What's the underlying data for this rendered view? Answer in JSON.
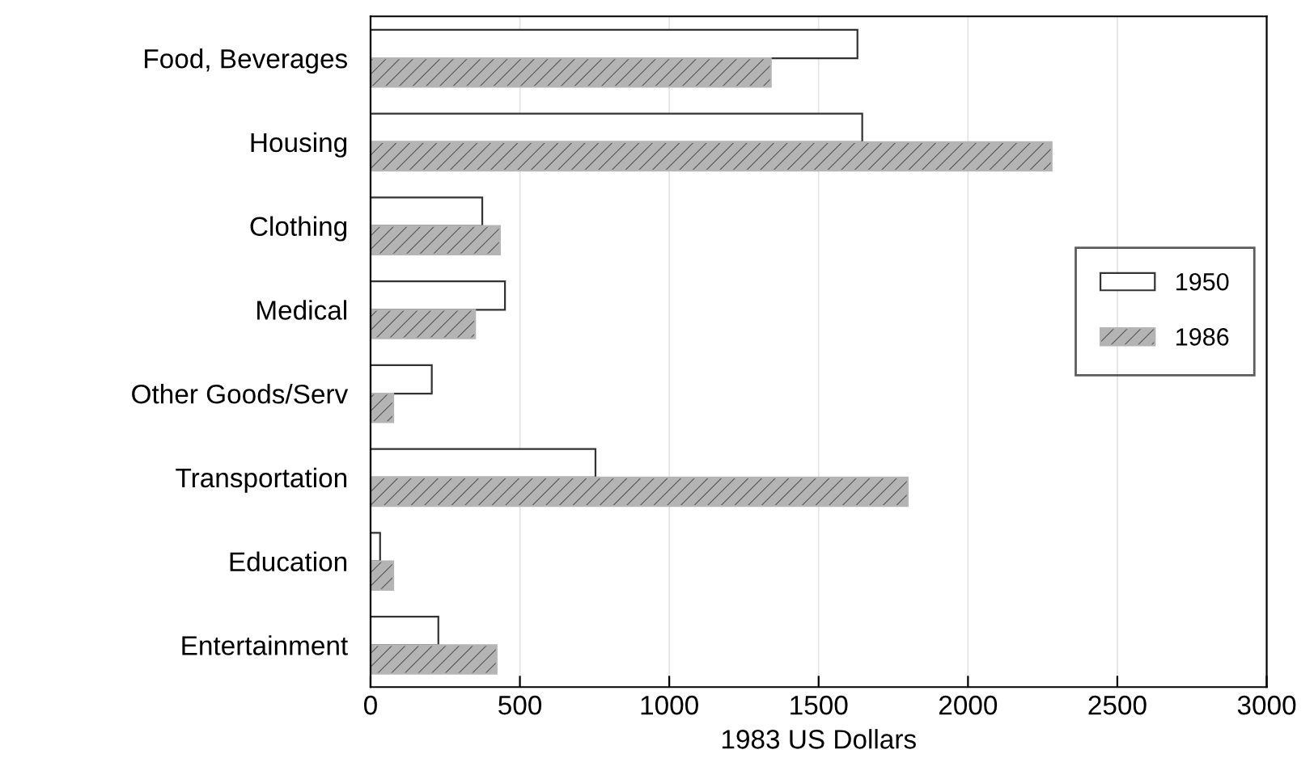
{
  "chart_data": {
    "type": "bar",
    "orientation": "horizontal",
    "xlabel": "1983 US Dollars",
    "categories": [
      "Food, Beverages",
      "Housing",
      "Clothing",
      "Medical",
      "Other Goods/Serv",
      "Transportation",
      "Education",
      "Entertainment"
    ],
    "series": [
      {
        "name": "1950",
        "color": "#ffffff",
        "values": [
          1630,
          1646,
          374,
          450,
          205,
          753,
          32,
          227
        ]
      },
      {
        "name": "1986",
        "color": "#b4b4b4",
        "values": [
          1340,
          2280,
          433,
          350,
          76,
          1798,
          76,
          422
        ]
      }
    ],
    "xlim": [
      0,
      3000
    ],
    "xticks": [
      0,
      500,
      1000,
      1500,
      2000,
      2500,
      3000
    ],
    "grid": "x",
    "legend": "right"
  }
}
